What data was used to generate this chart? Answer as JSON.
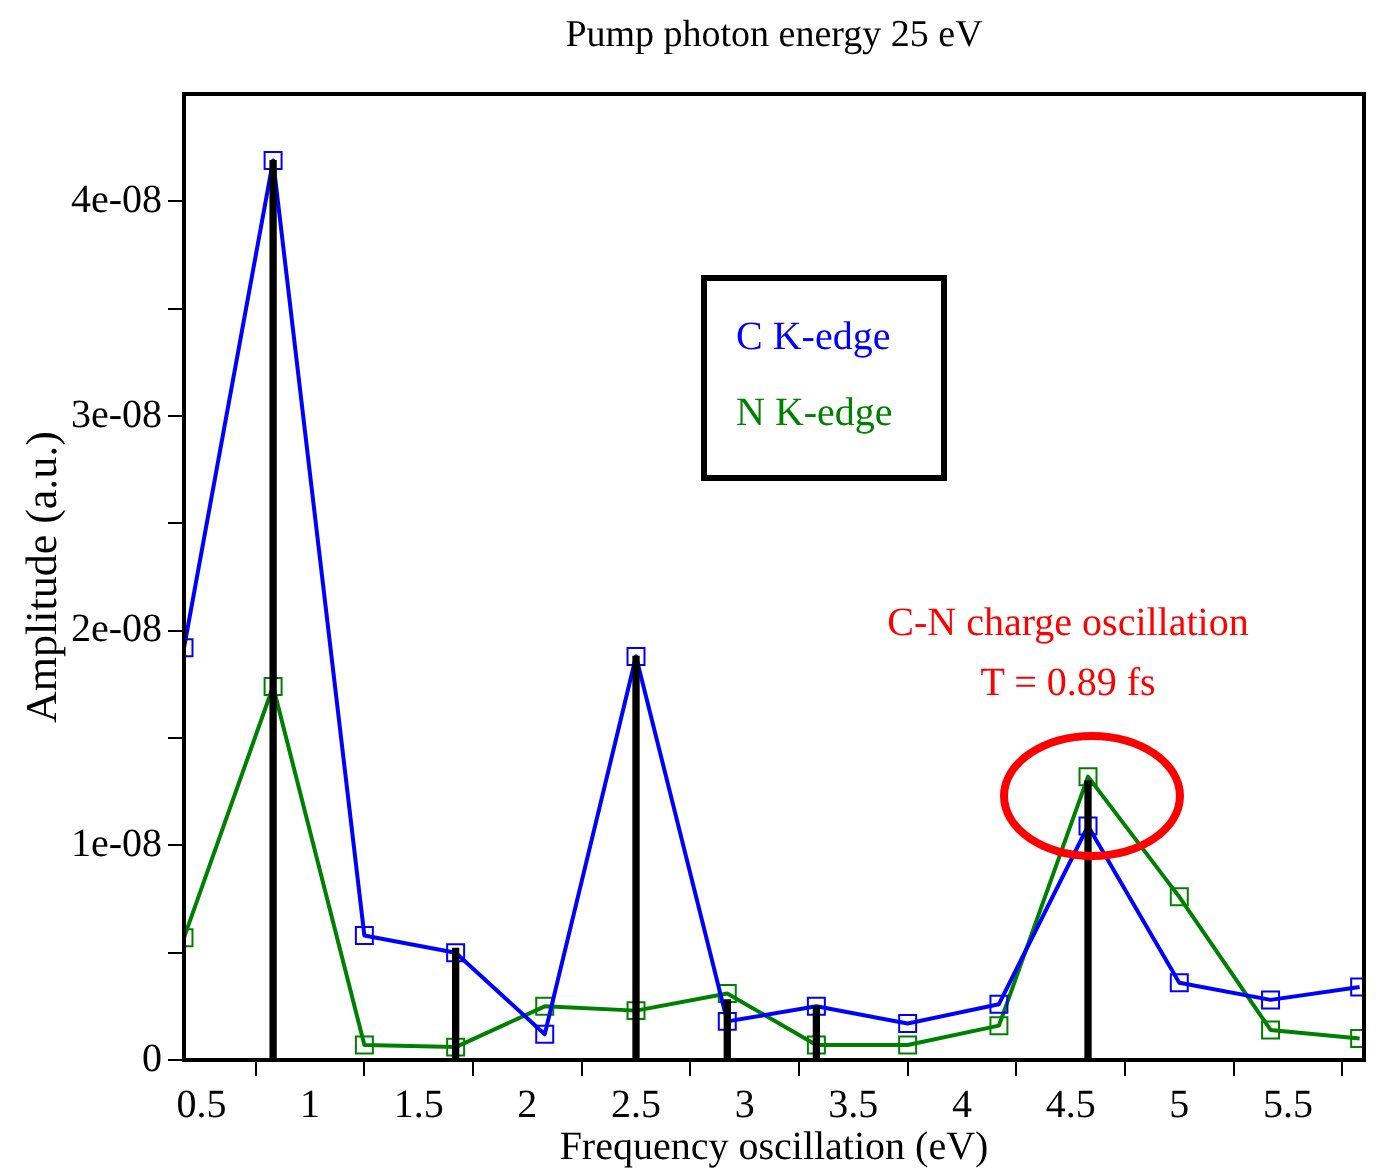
{
  "chart_data": {
    "type": "line",
    "title": "Pump photon energy 25 eV",
    "xlabel": "Frequency oscillation (eV)",
    "ylabel": "Amplitude (a.u.)",
    "x": [
      0.42,
      0.83,
      1.25,
      1.67,
      2.08,
      2.5,
      2.92,
      3.33,
      3.75,
      4.17,
      4.58,
      5.0,
      5.42,
      5.83
    ],
    "series": [
      {
        "name": "C K-edge",
        "color": "#0000ff",
        "values": [
          1.92e-08,
          4.19e-08,
          5.8e-09,
          5e-09,
          1.2e-09,
          1.88e-08,
          1.8e-09,
          2.5e-09,
          1.7e-09,
          2.6e-09,
          1.09e-08,
          3.6e-09,
          2.8e-09,
          3.4e-09
        ]
      },
      {
        "name": "N K-edge",
        "color": "#008000",
        "values": [
          5.7e-09,
          1.74e-08,
          7e-10,
          6e-10,
          2.5e-09,
          2.3e-09,
          3.1e-09,
          7e-10,
          7e-10,
          1.6e-09,
          1.32e-08,
          7.6e-09,
          1.4e-09,
          1e-09
        ]
      },
      {
        "type": "bar",
        "color": "#000000",
        "x": [
          0.83,
          1.67,
          2.5,
          2.92,
          3.33,
          4.58
        ],
        "values": [
          4.19e-08,
          5.2e-09,
          1.88e-08,
          2.8e-09,
          2.5e-09,
          1.3e-08
        ]
      }
    ],
    "marker": "square",
    "legend": "top",
    "grid": false,
    "xlim": [
      0.42,
      5.85
    ],
    "xticks": [
      0.5,
      1,
      1.5,
      2,
      2.5,
      3,
      3.5,
      4,
      4.5,
      5,
      5.5
    ],
    "ylim": [
      0,
      4.5e-08
    ],
    "yticks": [
      0,
      {
        "value": 5e-09,
        "label": null
      },
      {
        "value": 1e-08,
        "label": "1e-08"
      },
      {
        "value": 1.5e-08,
        "label": null
      },
      {
        "value": 2e-08,
        "label": "2e-08"
      },
      {
        "value": 2.5e-08,
        "label": null
      },
      {
        "value": 3e-08,
        "label": "3e-08"
      },
      {
        "value": 3.5e-08,
        "label": null
      },
      {
        "value": 4e-08,
        "label": "4e-08"
      }
    ],
    "annotations": [
      "C-N charge oscillation",
      "T = 0.89 fs"
    ]
  }
}
